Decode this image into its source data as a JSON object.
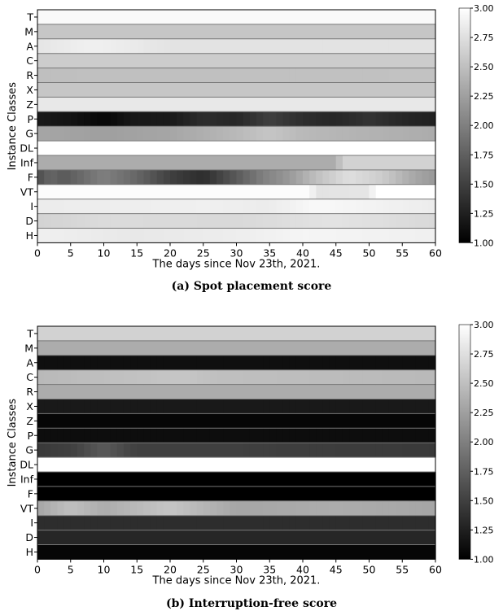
{
  "chart_data": [
    {
      "type": "heatmap",
      "caption": "(a) Spot placement score",
      "xlabel": "The days since Nov 23th, 2021.",
      "ylabel": "Instance Classes",
      "xlim": [
        0,
        60
      ],
      "xticks": [
        0,
        5,
        10,
        15,
        20,
        25,
        30,
        35,
        40,
        45,
        50,
        55,
        60
      ],
      "rows": [
        "T",
        "M",
        "A",
        "C",
        "R",
        "X",
        "Z",
        "P",
        "G",
        "DL",
        "Inf",
        "F",
        "VT",
        "I",
        "D",
        "H"
      ],
      "colorbar": {
        "min": 1.0,
        "max": 3.0,
        "ticks": [
          "1.00",
          "1.25",
          "1.50",
          "1.75",
          "2.00",
          "2.25",
          "2.50",
          "2.75",
          "3.00"
        ],
        "colormap": "gray"
      },
      "values": [
        [
          [
            0,
            2.95
          ],
          [
            60,
            2.95
          ]
        ],
        [
          [
            0,
            2.55
          ],
          [
            60,
            2.55
          ]
        ],
        [
          [
            0,
            2.8
          ],
          [
            8,
            2.88
          ],
          [
            13,
            2.85
          ],
          [
            20,
            2.78
          ],
          [
            60,
            2.78
          ]
        ],
        [
          [
            0,
            2.6
          ],
          [
            60,
            2.6
          ]
        ],
        [
          [
            0,
            2.5
          ],
          [
            60,
            2.52
          ]
        ],
        [
          [
            0,
            2.55
          ],
          [
            60,
            2.55
          ]
        ],
        [
          [
            0,
            2.82
          ],
          [
            60,
            2.82
          ]
        ],
        [
          [
            0,
            1.2
          ],
          [
            5,
            1.15
          ],
          [
            10,
            1.05
          ],
          [
            15,
            1.2
          ],
          [
            20,
            1.2
          ],
          [
            25,
            1.35
          ],
          [
            30,
            1.3
          ],
          [
            35,
            1.5
          ],
          [
            40,
            1.35
          ],
          [
            45,
            1.3
          ],
          [
            50,
            1.4
          ],
          [
            55,
            1.3
          ],
          [
            60,
            1.25
          ]
        ],
        [
          [
            0,
            2.3
          ],
          [
            10,
            2.25
          ],
          [
            20,
            2.3
          ],
          [
            30,
            2.45
          ],
          [
            35,
            2.55
          ],
          [
            40,
            2.45
          ],
          [
            50,
            2.4
          ],
          [
            60,
            2.35
          ]
        ],
        [
          [
            0,
            3.0
          ],
          [
            60,
            3.0
          ]
        ],
        [
          [
            0,
            2.35
          ],
          [
            45,
            2.35
          ],
          [
            46,
            2.65
          ],
          [
            60,
            2.65
          ]
        ],
        [
          [
            0,
            1.6
          ],
          [
            2,
            1.8
          ],
          [
            4,
            1.7
          ],
          [
            10,
            2.0
          ],
          [
            15,
            1.8
          ],
          [
            20,
            1.5
          ],
          [
            25,
            1.35
          ],
          [
            30,
            1.7
          ],
          [
            34,
            2.0
          ],
          [
            38,
            2.2
          ],
          [
            42,
            2.5
          ],
          [
            47,
            2.75
          ],
          [
            52,
            2.6
          ],
          [
            57,
            2.3
          ],
          [
            60,
            2.2
          ]
        ],
        [
          [
            0,
            2.98
          ],
          [
            41,
            2.98
          ],
          [
            42,
            2.78
          ],
          [
            50,
            2.8
          ],
          [
            51,
            3.0
          ],
          [
            60,
            3.0
          ]
        ],
        [
          [
            0,
            2.85
          ],
          [
            25,
            2.88
          ],
          [
            35,
            2.85
          ],
          [
            42,
            2.95
          ],
          [
            60,
            2.85
          ]
        ],
        [
          [
            0,
            2.65
          ],
          [
            10,
            2.72
          ],
          [
            30,
            2.7
          ],
          [
            45,
            2.78
          ],
          [
            60,
            2.7
          ]
        ],
        [
          [
            0,
            2.88
          ],
          [
            15,
            2.82
          ],
          [
            30,
            2.86
          ],
          [
            40,
            2.92
          ],
          [
            60,
            2.88
          ]
        ]
      ]
    },
    {
      "type": "heatmap",
      "caption": "(b) Interruption-free score",
      "xlabel": "The days since Nov 23th, 2021.",
      "ylabel": "Instance Classes",
      "xlim": [
        0,
        60
      ],
      "xticks": [
        0,
        5,
        10,
        15,
        20,
        25,
        30,
        35,
        40,
        45,
        50,
        55,
        60
      ],
      "rows": [
        "T",
        "M",
        "A",
        "C",
        "R",
        "X",
        "Z",
        "P",
        "G",
        "DL",
        "Inf",
        "F",
        "VT",
        "I",
        "D",
        "H"
      ],
      "colorbar": {
        "min": 1.0,
        "max": 3.0,
        "ticks": [
          "1.00",
          "1.25",
          "1.50",
          "1.75",
          "2.00",
          "2.25",
          "2.50",
          "2.75",
          "3.00"
        ],
        "colormap": "gray"
      },
      "values": [
        [
          [
            0,
            2.65
          ],
          [
            60,
            2.65
          ]
        ],
        [
          [
            0,
            2.35
          ],
          [
            60,
            2.35
          ]
        ],
        [
          [
            0,
            1.12
          ],
          [
            60,
            1.12
          ]
        ],
        [
          [
            0,
            2.45
          ],
          [
            22,
            2.55
          ],
          [
            27,
            2.5
          ],
          [
            60,
            2.45
          ]
        ],
        [
          [
            0,
            2.35
          ],
          [
            60,
            2.35
          ]
        ],
        [
          [
            0,
            1.2
          ],
          [
            60,
            1.2
          ]
        ],
        [
          [
            0,
            1.05
          ],
          [
            60,
            1.05
          ]
        ],
        [
          [
            0,
            1.1
          ],
          [
            60,
            1.1
          ]
        ],
        [
          [
            0,
            1.45
          ],
          [
            5,
            1.5
          ],
          [
            10,
            1.7
          ],
          [
            15,
            1.5
          ],
          [
            30,
            1.5
          ],
          [
            60,
            1.45
          ]
        ],
        [
          [
            0,
            3.0
          ],
          [
            60,
            3.0
          ]
        ],
        [
          [
            0,
            1.0
          ],
          [
            60,
            1.0
          ]
        ],
        [
          [
            0,
            1.0
          ],
          [
            60,
            1.0
          ]
        ],
        [
          [
            0,
            2.3
          ],
          [
            5,
            2.5
          ],
          [
            10,
            2.35
          ],
          [
            20,
            2.55
          ],
          [
            30,
            2.3
          ],
          [
            45,
            2.35
          ],
          [
            60,
            2.3
          ]
        ],
        [
          [
            0,
            1.35
          ],
          [
            60,
            1.35
          ]
        ],
        [
          [
            0,
            1.3
          ],
          [
            60,
            1.3
          ]
        ],
        [
          [
            0,
            1.05
          ],
          [
            60,
            1.05
          ]
        ]
      ]
    }
  ]
}
